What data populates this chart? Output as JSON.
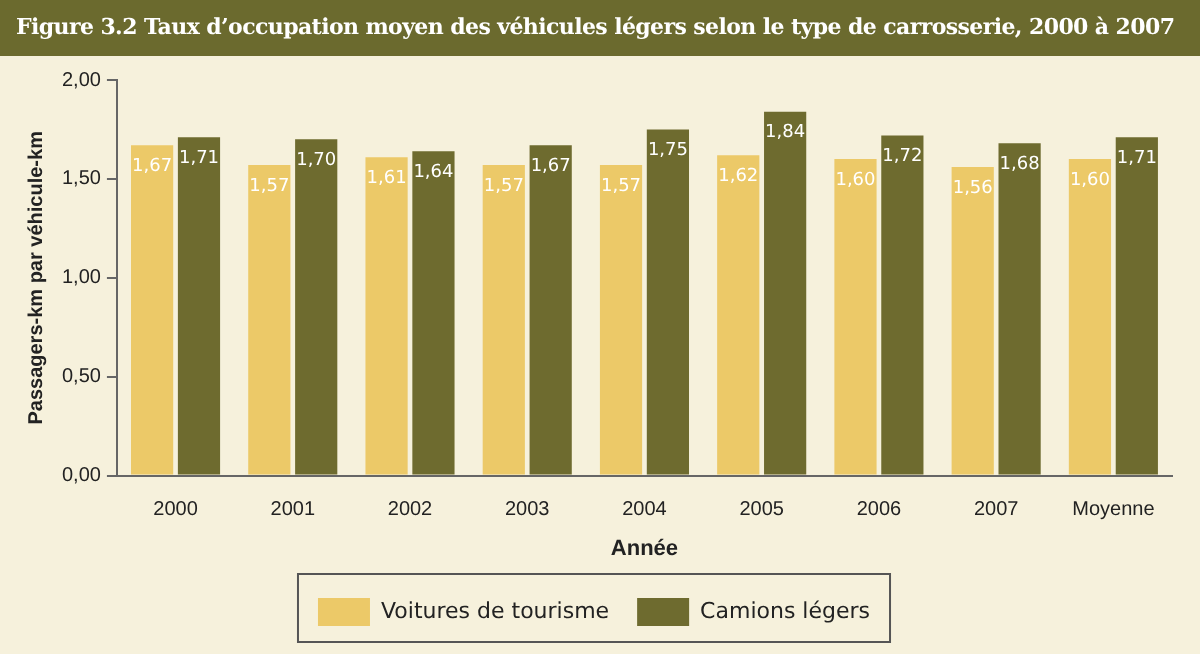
{
  "chart_data": {
    "type": "bar",
    "title": "Figure 3.2  Taux d’occupation moyen des véhicules légers selon le type de carrosserie, 2000 à 2007",
    "xlabel": "Année",
    "ylabel": "Passagers-km par véhicule-km",
    "categories": [
      "2000",
      "2001",
      "2002",
      "2003",
      "2004",
      "2005",
      "2006",
      "2007",
      "Moyenne"
    ],
    "series": [
      {
        "name": "Voitures de tourisme",
        "color": "#ecc968",
        "values": [
          1.67,
          1.57,
          1.61,
          1.57,
          1.57,
          1.62,
          1.6,
          1.56,
          1.6
        ],
        "value_labels": [
          "1,67",
          "1,57",
          "1,61",
          "1,57",
          "1,57",
          "1,62",
          "1,60",
          "1,56",
          "1,60"
        ]
      },
      {
        "name": "Camions légers",
        "color": "#6e6b2f",
        "values": [
          1.71,
          1.7,
          1.64,
          1.67,
          1.75,
          1.84,
          1.72,
          1.68,
          1.71
        ],
        "value_labels": [
          "1,71",
          "1,70",
          "1,64",
          "1,67",
          "1,75",
          "1,84",
          "1,72",
          "1,68",
          "1,71"
        ]
      }
    ],
    "ylim": [
      0,
      2
    ],
    "yticks": [
      {
        "value": 0,
        "label": "0,00"
      },
      {
        "value": 0.5,
        "label": "0,50"
      },
      {
        "value": 1,
        "label": "1,00"
      },
      {
        "value": 1.5,
        "label": "1,50"
      },
      {
        "value": 2,
        "label": "2,00"
      }
    ],
    "grid": false,
    "legend": "bottom"
  }
}
